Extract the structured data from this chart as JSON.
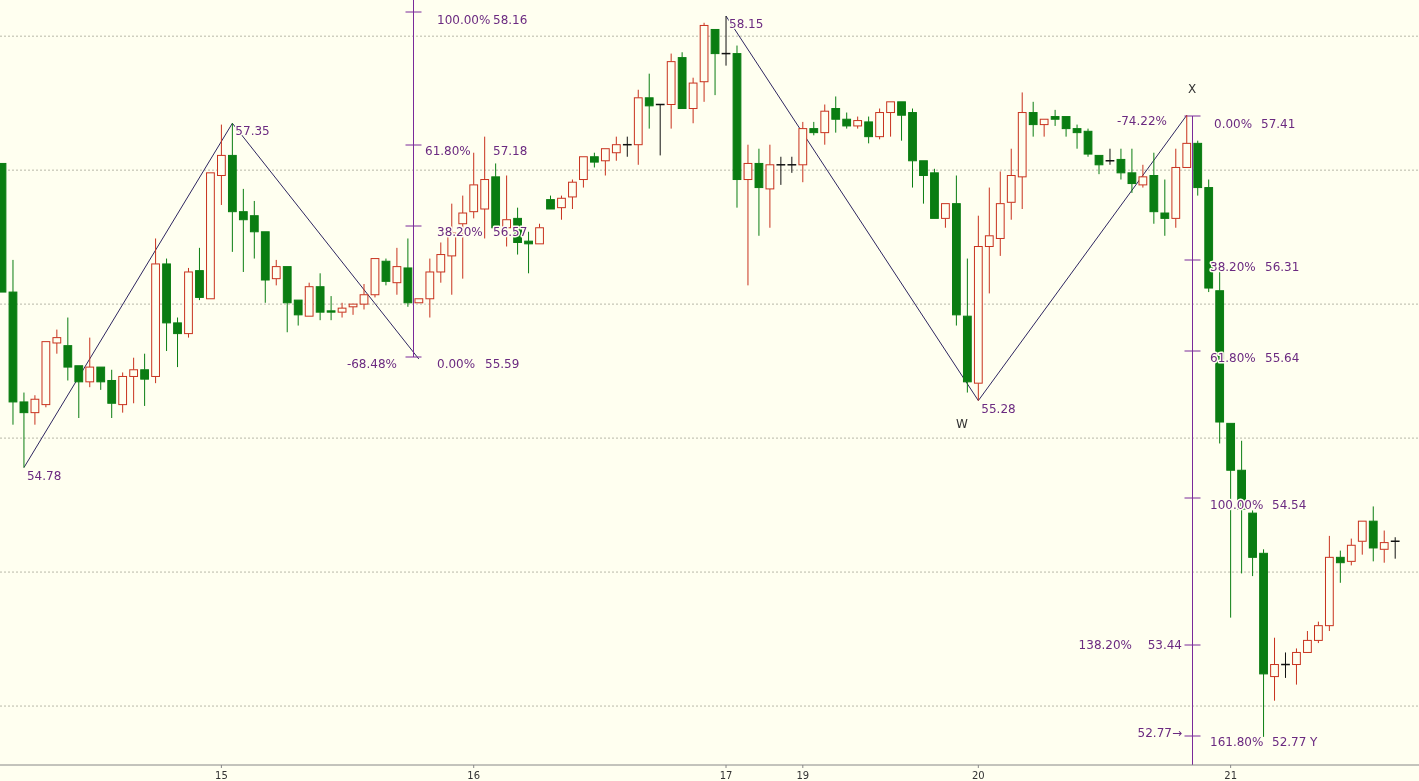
{
  "chart_data": {
    "type": "candlestick",
    "categories": [
      null,
      null,
      null,
      null,
      null,
      null,
      null,
      null,
      null,
      null,
      null,
      null,
      null,
      null,
      null,
      null,
      null,
      null,
      null,
      null,
      "15",
      null,
      null,
      null,
      null,
      null,
      null,
      null,
      null,
      null,
      null,
      null,
      null,
      null,
      null,
      null,
      null,
      null,
      null,
      null,
      null,
      null,
      null,
      "16",
      null,
      null,
      null,
      null,
      null,
      null,
      null,
      null,
      null,
      null,
      null,
      null,
      null,
      null,
      null,
      null,
      null,
      null,
      null,
      null,
      null,
      null,
      "17",
      null,
      null,
      null,
      null,
      null,
      null,
      "19",
      null,
      null,
      null,
      null,
      null,
      null,
      null,
      null,
      null,
      null,
      null,
      null,
      null,
      null,
      null,
      "20",
      null,
      null,
      null,
      null,
      null,
      null,
      null,
      null,
      null,
      null,
      null,
      null,
      null,
      null,
      null,
      null,
      null,
      null,
      null,
      null,
      null,
      null,
      "21",
      null,
      null,
      null,
      null,
      null,
      null,
      null,
      null,
      null,
      null,
      null,
      null,
      null,
      null,
      null
    ],
    "ohlc": [
      [
        57.05,
        57.05,
        56.09,
        56.09
      ],
      [
        56.09,
        56.33,
        55.1,
        55.27
      ],
      [
        55.27,
        55.34,
        54.78,
        55.19
      ],
      [
        55.19,
        55.32,
        55.1,
        55.29
      ],
      [
        55.25,
        55.73,
        55.23,
        55.72
      ],
      [
        55.71,
        55.81,
        55.63,
        55.75
      ],
      [
        55.69,
        55.9,
        55.43,
        55.53
      ],
      [
        55.54,
        55.54,
        55.15,
        55.42
      ],
      [
        55.42,
        55.75,
        55.38,
        55.53
      ],
      [
        55.53,
        55.53,
        55.36,
        55.42
      ],
      [
        55.43,
        55.51,
        55.15,
        55.26
      ],
      [
        55.25,
        55.49,
        55.19,
        55.46
      ],
      [
        55.46,
        55.6,
        55.26,
        55.51
      ],
      [
        55.51,
        55.63,
        55.24,
        55.44
      ],
      [
        55.46,
        56.49,
        55.41,
        56.3
      ],
      [
        56.3,
        56.34,
        55.65,
        55.86
      ],
      [
        55.86,
        55.9,
        55.53,
        55.78
      ],
      [
        55.78,
        56.27,
        55.75,
        56.24
      ],
      [
        56.25,
        56.42,
        56.03,
        56.05
      ],
      [
        56.04,
        56.98,
        56.03,
        56.98
      ],
      [
        56.96,
        57.34,
        56.74,
        57.11
      ],
      [
        57.11,
        57.35,
        56.39,
        56.69
      ],
      [
        56.69,
        56.86,
        56.24,
        56.63
      ],
      [
        56.66,
        56.77,
        56.34,
        56.54
      ],
      [
        56.54,
        56.54,
        56.01,
        56.18
      ],
      [
        56.19,
        56.33,
        56.14,
        56.28
      ],
      [
        56.28,
        56.28,
        55.79,
        56.01
      ],
      [
        56.03,
        56.04,
        55.84,
        55.92
      ],
      [
        55.91,
        56.16,
        55.9,
        56.13
      ],
      [
        56.13,
        56.23,
        55.88,
        55.94
      ],
      [
        55.95,
        56.06,
        55.88,
        55.94
      ],
      [
        55.94,
        56.01,
        55.9,
        55.97
      ],
      [
        55.98,
        56.01,
        55.92,
        56.0
      ],
      [
        56.0,
        56.15,
        55.96,
        56.07
      ],
      [
        56.07,
        56.34,
        56.05,
        56.34
      ],
      [
        56.32,
        56.34,
        56.14,
        56.17
      ],
      [
        56.16,
        56.42,
        56.07,
        56.28
      ],
      [
        56.27,
        56.49,
        55.98,
        56.01
      ],
      [
        56.01,
        56.05,
        56.0,
        56.04
      ],
      [
        56.04,
        56.34,
        55.9,
        56.24
      ],
      [
        56.24,
        56.46,
        56.16,
        56.37
      ],
      [
        56.36,
        56.75,
        56.07,
        56.53
      ],
      [
        56.6,
        56.81,
        56.19,
        56.68
      ],
      [
        56.69,
        57.13,
        56.64,
        56.89
      ],
      [
        56.71,
        57.25,
        56.49,
        56.93
      ],
      [
        56.95,
        57.05,
        56.57,
        56.57
      ],
      [
        56.57,
        56.96,
        56.43,
        56.63
      ],
      [
        56.64,
        56.72,
        56.37,
        56.46
      ],
      [
        56.47,
        56.54,
        56.23,
        56.45
      ],
      [
        56.45,
        56.6,
        56.45,
        56.57
      ],
      [
        56.78,
        56.81,
        56.71,
        56.71
      ],
      [
        56.72,
        56.81,
        56.63,
        56.79
      ],
      [
        56.8,
        56.93,
        56.71,
        56.91
      ],
      [
        56.93,
        57.11,
        56.87,
        57.1
      ],
      [
        57.1,
        57.13,
        57.02,
        57.06
      ],
      [
        57.07,
        57.16,
        56.96,
        57.16
      ],
      [
        57.13,
        57.25,
        57.07,
        57.19
      ],
      [
        57.19,
        57.25,
        57.1,
        57.19
      ],
      [
        57.19,
        57.6,
        57.04,
        57.54
      ],
      [
        57.54,
        57.72,
        57.31,
        57.48
      ],
      [
        57.49,
        57.49,
        57.11,
        57.49
      ],
      [
        57.49,
        57.87,
        57.31,
        57.81
      ],
      [
        57.84,
        57.88,
        57.46,
        57.46
      ],
      [
        57.46,
        57.69,
        57.35,
        57.65
      ],
      [
        57.66,
        58.1,
        57.51,
        58.08
      ],
      [
        58.05,
        58.05,
        57.56,
        57.87
      ],
      [
        57.87,
        58.15,
        57.78,
        57.87
      ],
      [
        57.87,
        57.93,
        56.72,
        56.93
      ],
      [
        56.93,
        57.19,
        56.14,
        57.05
      ],
      [
        57.05,
        57.16,
        56.51,
        56.87
      ],
      [
        56.86,
        57.19,
        56.57,
        57.04
      ],
      [
        57.04,
        57.1,
        56.89,
        57.04
      ],
      [
        57.04,
        57.1,
        56.98,
        57.04
      ],
      [
        57.04,
        57.36,
        56.91,
        57.31
      ],
      [
        57.31,
        57.36,
        57.26,
        57.28
      ],
      [
        57.28,
        57.49,
        57.19,
        57.44
      ],
      [
        57.46,
        57.55,
        57.28,
        57.38
      ],
      [
        57.38,
        57.43,
        57.31,
        57.33
      ],
      [
        57.33,
        57.4,
        57.31,
        57.37
      ],
      [
        57.36,
        57.4,
        57.2,
        57.25
      ],
      [
        57.25,
        57.46,
        57.23,
        57.43
      ],
      [
        57.43,
        57.51,
        57.25,
        57.51
      ],
      [
        57.51,
        57.51,
        57.22,
        57.41
      ],
      [
        57.43,
        57.46,
        56.87,
        57.07
      ],
      [
        57.07,
        57.07,
        56.75,
        56.96
      ],
      [
        56.98,
        57.01,
        56.63,
        56.64
      ],
      [
        56.64,
        56.76,
        56.57,
        56.75
      ],
      [
        56.75,
        56.96,
        55.84,
        55.92
      ],
      [
        55.91,
        56.34,
        55.34,
        55.42
      ],
      [
        55.41,
        56.66,
        55.28,
        56.43
      ],
      [
        56.43,
        56.87,
        56.08,
        56.51
      ],
      [
        56.49,
        56.99,
        56.36,
        56.75
      ],
      [
        56.76,
        57.16,
        56.63,
        56.96
      ],
      [
        56.95,
        57.58,
        56.71,
        57.43
      ],
      [
        57.43,
        57.51,
        57.25,
        57.34
      ],
      [
        57.34,
        57.38,
        57.25,
        57.38
      ],
      [
        57.4,
        57.45,
        57.33,
        57.38
      ],
      [
        57.4,
        57.4,
        57.25,
        57.31
      ],
      [
        57.31,
        57.34,
        57.16,
        57.28
      ],
      [
        57.29,
        57.31,
        57.1,
        57.12
      ],
      [
        57.11,
        57.11,
        56.97,
        57.04
      ],
      [
        57.07,
        57.16,
        57.04,
        57.07
      ],
      [
        57.08,
        57.16,
        56.93,
        56.98
      ],
      [
        56.98,
        57.16,
        56.83,
        56.9
      ],
      [
        56.89,
        57.04,
        56.87,
        56.95
      ],
      [
        56.96,
        57.13,
        56.6,
        56.69
      ],
      [
        56.68,
        56.93,
        56.51,
        56.64
      ],
      [
        56.64,
        57.16,
        56.57,
        57.02
      ],
      [
        57.02,
        57.41,
        57.02,
        57.2
      ],
      [
        57.2,
        57.22,
        56.81,
        56.87
      ],
      [
        56.87,
        56.93,
        56.09,
        56.12
      ],
      [
        56.1,
        56.25,
        54.96,
        55.12
      ],
      [
        55.11,
        55.11,
        53.66,
        54.76
      ],
      [
        54.76,
        54.98,
        53.99,
        54.47
      ],
      [
        54.44,
        54.46,
        53.97,
        54.11
      ],
      [
        54.14,
        54.17,
        52.77,
        53.24
      ],
      [
        53.22,
        53.51,
        53.04,
        53.31
      ],
      [
        53.31,
        53.4,
        53.21,
        53.31
      ],
      [
        53.31,
        53.43,
        53.16,
        53.4
      ],
      [
        53.4,
        53.56,
        53.4,
        53.49
      ],
      [
        53.49,
        53.63,
        53.47,
        53.6
      ],
      [
        53.6,
        54.27,
        53.56,
        54.11
      ],
      [
        54.11,
        54.16,
        53.92,
        54.07
      ],
      [
        54.08,
        54.25,
        54.05,
        54.2
      ],
      [
        54.23,
        54.39,
        54.13,
        54.38
      ],
      [
        54.38,
        54.49,
        54.08,
        54.18
      ],
      [
        54.17,
        54.31,
        54.07,
        54.22
      ],
      [
        54.23,
        54.26,
        54.1,
        54.23
      ]
    ],
    "ylim": [
      52.56,
      58.27
    ],
    "yticks": [
      {
        "value": 53,
        "label": null
      },
      {
        "value": 54,
        "label": null
      },
      {
        "value": 55,
        "label": null
      },
      {
        "value": 56,
        "label": null
      },
      {
        "value": 57,
        "label": null
      },
      {
        "value": 58,
        "label": null
      }
    ],
    "grid": "y",
    "tick_labels": "x",
    "series": [
      {
        "type": "line",
        "color": "#2e2660",
        "values": [
          null,
          null,
          54.78,
          null,
          null,
          null,
          null,
          null,
          null,
          null,
          null,
          null,
          null,
          null,
          null,
          null,
          null,
          null,
          null,
          null,
          null,
          57.35,
          null,
          null,
          null,
          null,
          null,
          null,
          null,
          null,
          null,
          null,
          null,
          null,
          null,
          null,
          null,
          null,
          55.59,
          null,
          null,
          null,
          null,
          null,
          null,
          null,
          null,
          null,
          null,
          null,
          null,
          null,
          null,
          null,
          null,
          null,
          null,
          null,
          null,
          null,
          null,
          null,
          null,
          null,
          null,
          null,
          null,
          null,
          null,
          null,
          null,
          null,
          null,
          null,
          null,
          null,
          null,
          null,
          null,
          null,
          null,
          null,
          null,
          null,
          null,
          null,
          null,
          null,
          null,
          null,
          null,
          null,
          null,
          null,
          null,
          null,
          null,
          null,
          null,
          null,
          null,
          null,
          null,
          null,
          null,
          null,
          null,
          null,
          null,
          null,
          null,
          null,
          null,
          null,
          null,
          null,
          null,
          null,
          null,
          null,
          null,
          null,
          null,
          null,
          null,
          null,
          null,
          null
        ],
        "value_labels": [
          null,
          null,
          "54.78",
          null,
          null,
          null,
          null,
          null,
          null,
          null,
          null,
          null,
          null,
          null,
          null,
          null,
          null,
          null,
          null,
          null,
          null,
          "57.35",
          null,
          null,
          null,
          null,
          null,
          null,
          null,
          null,
          null,
          null,
          null,
          null,
          null,
          null,
          null,
          null,
          null,
          null,
          null,
          null,
          null,
          null,
          null,
          null,
          null,
          null,
          null,
          null,
          null,
          null,
          null,
          null,
          null,
          null,
          null,
          null,
          null,
          null,
          null,
          null,
          null,
          null,
          null,
          null,
          null,
          null,
          null,
          null,
          null,
          null,
          null,
          null,
          null,
          null,
          null,
          null,
          null,
          null,
          null,
          null,
          null,
          null,
          null,
          null,
          null,
          null,
          null,
          null,
          null,
          null,
          null,
          null,
          null,
          null,
          null,
          null,
          null,
          null,
          null,
          null,
          null,
          null,
          null,
          null,
          null,
          null,
          null,
          null,
          null,
          null,
          null,
          null,
          null,
          null,
          null,
          null,
          null,
          null,
          null,
          null,
          null,
          null,
          null,
          null,
          null,
          null
        ]
      },
      {
        "type": "line",
        "color": "#2e2660",
        "values": [
          null,
          null,
          null,
          null,
          null,
          null,
          null,
          null,
          null,
          null,
          null,
          null,
          null,
          null,
          null,
          null,
          null,
          null,
          null,
          null,
          null,
          null,
          null,
          null,
          null,
          null,
          null,
          null,
          null,
          null,
          null,
          null,
          null,
          null,
          null,
          null,
          null,
          null,
          null,
          null,
          null,
          null,
          null,
          null,
          null,
          null,
          null,
          null,
          null,
          null,
          null,
          null,
          null,
          null,
          null,
          null,
          null,
          null,
          null,
          null,
          null,
          null,
          null,
          null,
          null,
          null,
          58.15,
          null,
          null,
          null,
          null,
          null,
          null,
          null,
          null,
          null,
          null,
          null,
          null,
          null,
          null,
          null,
          null,
          null,
          null,
          null,
          null,
          null,
          null,
          55.28,
          null,
          null,
          null,
          null,
          null,
          null,
          null,
          null,
          null,
          null,
          null,
          null,
          null,
          null,
          null,
          null,
          null,
          null,
          57.41,
          null,
          null,
          null,
          null,
          null,
          null,
          null,
          null,
          null,
          null,
          null,
          null,
          null,
          null,
          null,
          null,
          null,
          null,
          null
        ],
        "value_labels": [
          null,
          null,
          null,
          null,
          null,
          null,
          null,
          null,
          null,
          null,
          null,
          null,
          null,
          null,
          null,
          null,
          null,
          null,
          null,
          null,
          null,
          null,
          null,
          null,
          null,
          null,
          null,
          null,
          null,
          null,
          null,
          null,
          null,
          null,
          null,
          null,
          null,
          null,
          null,
          null,
          null,
          null,
          null,
          null,
          null,
          null,
          null,
          null,
          null,
          null,
          null,
          null,
          null,
          null,
          null,
          null,
          null,
          null,
          null,
          null,
          null,
          null,
          null,
          null,
          null,
          null,
          "58.15",
          null,
          null,
          null,
          null,
          null,
          null,
          null,
          null,
          null,
          null,
          null,
          null,
          null,
          null,
          null,
          null,
          null,
          null,
          null,
          null,
          null,
          null,
          "55.28",
          null,
          null,
          null,
          null,
          null,
          null,
          null,
          null,
          null,
          null,
          null,
          null,
          null,
          null,
          null,
          null,
          null,
          null,
          null,
          null,
          null,
          null,
          null,
          null,
          null,
          null,
          null,
          null,
          null,
          null,
          null,
          null,
          null,
          null,
          null,
          null,
          null,
          null
        ]
      }
    ],
    "annotations": [
      "100.00%",
      "58.16",
      "61.80%",
      "57.18",
      "38.20%",
      "56.57",
      "0.00%",
      "55.59",
      "-68.48%",
      "-74.22%",
      "0.00%",
      "57.41",
      "X",
      "38.20%",
      "56.31",
      "61.80%",
      "55.64",
      "100.00%",
      "54.54",
      "138.20%",
      "53.44",
      "161.80%",
      "52.77",
      "Y",
      "52.77→",
      "W"
    ]
  }
}
